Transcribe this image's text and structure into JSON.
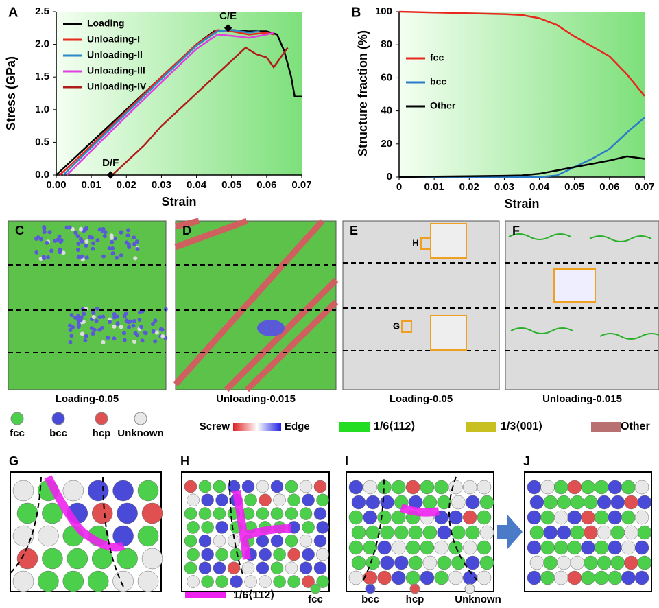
{
  "chart_data": [
    {
      "type": "line",
      "label": "A",
      "xlabel": "Strain",
      "ylabel": "Stress (GPa)",
      "xlim": [
        0,
        0.07
      ],
      "ylim": [
        0,
        2.5
      ],
      "xticks": [
        {
          "value": 0,
          "label": "0.00"
        },
        0.01,
        0.02,
        0.03,
        0.04,
        0.05,
        0.06,
        0.07
      ],
      "yticks": [
        {
          "value": 0,
          "label": "0.0"
        },
        0.5,
        {
          "value": 1,
          "label": "1.0"
        },
        1.5,
        {
          "value": 2,
          "label": "2.0"
        },
        2.5
      ],
      "legend": "upper left",
      "series": [
        {
          "name": "Loading",
          "color": "#000000",
          "x": [
            0,
            0.01,
            0.02,
            0.03,
            0.04,
            0.045,
            0.05,
            0.055,
            0.06,
            0.063,
            0.065,
            0.067,
            0.068,
            0.07
          ],
          "values": [
            0,
            0.5,
            1.0,
            1.5,
            2.0,
            2.2,
            2.22,
            2.2,
            2.2,
            2.15,
            1.9,
            1.5,
            1.2,
            1.2
          ]
        },
        {
          "name": "Unloading-I",
          "color": "#e8281e",
          "x": [
            0.001,
            0.01,
            0.02,
            0.03,
            0.04,
            0.046,
            0.05,
            0.055,
            0.06,
            0.062
          ],
          "values": [
            0,
            0.45,
            0.98,
            1.5,
            2.0,
            2.22,
            2.2,
            2.15,
            2.18,
            2.15
          ]
        },
        {
          "name": "Unloading-II",
          "color": "#2a8ac8",
          "x": [
            0.002,
            0.01,
            0.02,
            0.03,
            0.04,
            0.046,
            0.05,
            0.055,
            0.058
          ],
          "values": [
            0,
            0.42,
            0.95,
            1.47,
            1.98,
            2.2,
            2.22,
            2.18,
            2.2
          ]
        },
        {
          "name": "Unloading-III",
          "color": "#e040e0",
          "x": [
            0.003,
            0.01,
            0.02,
            0.03,
            0.04,
            0.046,
            0.05,
            0.055,
            0.06,
            0.062
          ],
          "values": [
            0,
            0.37,
            0.9,
            1.42,
            1.93,
            2.15,
            2.13,
            2.1,
            2.15,
            2.18
          ]
        },
        {
          "name": "Unloading-IV",
          "color": "#b01c1c",
          "x": [
            0.016,
            0.02,
            0.025,
            0.03,
            0.035,
            0.04,
            0.045,
            0.05,
            0.054,
            0.057,
            0.06,
            0.062,
            0.064,
            0.066
          ],
          "values": [
            0,
            0.2,
            0.45,
            0.75,
            1.0,
            1.25,
            1.5,
            1.75,
            1.95,
            1.85,
            1.8,
            1.65,
            1.8,
            1.95
          ]
        }
      ],
      "annotations": [
        {
          "text": "C/E",
          "x": 0.049,
          "y": 2.25
        },
        {
          "text": "D/F",
          "x": 0.0155,
          "y": 0
        }
      ]
    },
    {
      "type": "line",
      "label": "B",
      "xlabel": "Strain",
      "ylabel": "Structure fraction (%)",
      "xlim": [
        0,
        0.07
      ],
      "ylim": [
        0,
        100
      ],
      "xticks": [
        0,
        0.01,
        0.02,
        0.03,
        0.04,
        0.05,
        0.06,
        0.07
      ],
      "yticks": [
        0,
        20,
        40,
        60,
        80,
        100
      ],
      "legend": "center left",
      "series": [
        {
          "name": "fcc",
          "color": "#e8281e",
          "x": [
            0,
            0.01,
            0.02,
            0.03,
            0.035,
            0.04,
            0.045,
            0.05,
            0.055,
            0.06,
            0.065,
            0.07
          ],
          "values": [
            100,
            99.5,
            99,
            98.5,
            98,
            96,
            92,
            85,
            79,
            73,
            62,
            49
          ]
        },
        {
          "name": "bcc",
          "color": "#2a7ac8",
          "x": [
            0,
            0.01,
            0.02,
            0.03,
            0.035,
            0.04,
            0.045,
            0.05,
            0.055,
            0.06,
            0.065,
            0.07
          ],
          "values": [
            0,
            0,
            0,
            0,
            0,
            0,
            1,
            6,
            11,
            17,
            27,
            36
          ]
        },
        {
          "name": "Other",
          "color": "#000000",
          "x": [
            0,
            0.01,
            0.02,
            0.03,
            0.035,
            0.04,
            0.045,
            0.05,
            0.055,
            0.06,
            0.065,
            0.07
          ],
          "values": [
            0,
            0.3,
            0.5,
            0.8,
            1,
            2,
            4,
            6,
            8,
            10,
            12.5,
            11
          ]
        }
      ]
    }
  ],
  "panels": {
    "labels": [
      "C",
      "D",
      "E",
      "F",
      "G",
      "H",
      "I",
      "J"
    ],
    "captions": [
      "Loading-0.05",
      "Unloading-0.015",
      "Loading-0.05",
      "Unloading-0.015"
    ],
    "insets": [
      "H",
      "G"
    ],
    "atoms": [
      "fcc",
      "bcc",
      "hcp",
      "Unknown"
    ],
    "dislocation": {
      "screw": "Screw",
      "edge": "Edge",
      "types": [
        "1/6⟨112⟩",
        "1/3⟨001⟩",
        "Other"
      ]
    },
    "bottom_legend": [
      "1/6⟨112⟩",
      "fcc",
      "bcc",
      "hcp",
      "Unknown"
    ]
  }
}
